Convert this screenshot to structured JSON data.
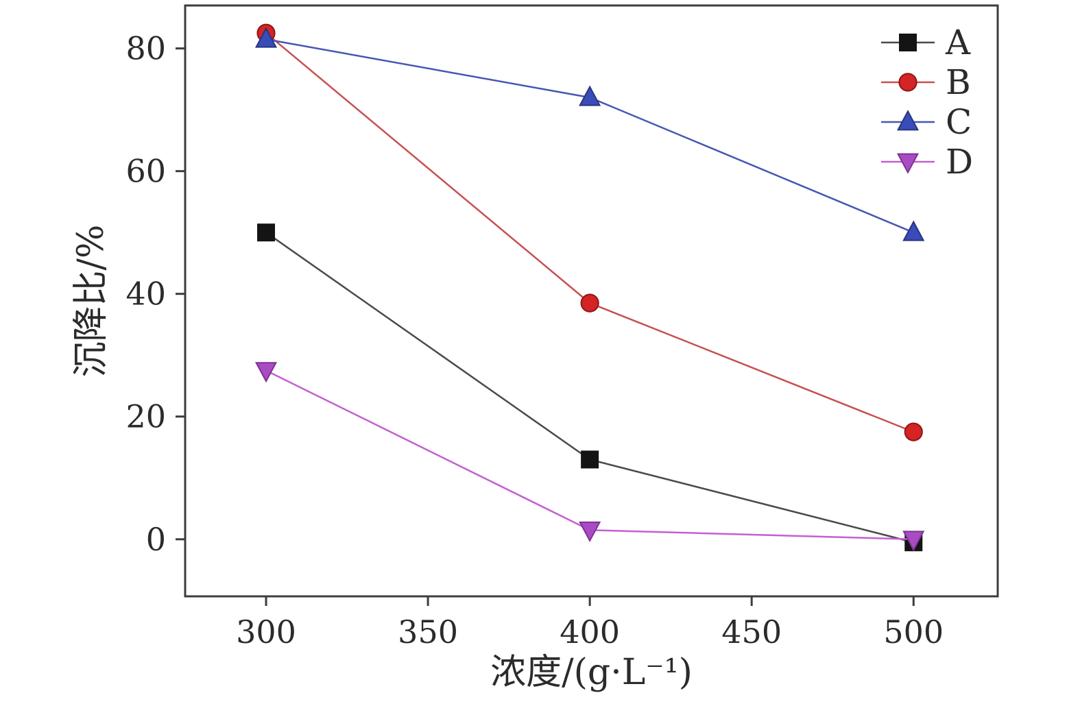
{
  "chart_data": {
    "type": "line",
    "title": "",
    "xlabel": "浓度/(g·L⁻¹)",
    "ylabel": "沉降比/%",
    "x": [
      300,
      400,
      500
    ],
    "x_ticks": [
      300,
      350,
      400,
      450,
      500
    ],
    "y_ticks": [
      0,
      20,
      40,
      60,
      80
    ],
    "xlim": [
      275,
      526
    ],
    "ylim": [
      -9.3,
      87
    ],
    "grid": false,
    "legend_position": "top-right",
    "series": [
      {
        "name": "A",
        "values": [
          50,
          13,
          -0.5
        ],
        "line_color": "#4a4a4a",
        "marker_color": "#141414",
        "marker_edge": "#141414",
        "marker": "square"
      },
      {
        "name": "B",
        "values": [
          82.5,
          38.5,
          17.5
        ],
        "line_color": "#c85050",
        "marker_color": "#d42424",
        "marker_edge": "#8e1616",
        "marker": "circle"
      },
      {
        "name": "C",
        "values": [
          81.5,
          72,
          50
        ],
        "line_color": "#4656b4",
        "marker_color": "#3a4cba",
        "marker_edge": "#28357e",
        "marker": "triangle-up"
      },
      {
        "name": "D",
        "values": [
          27.5,
          1.5,
          0
        ],
        "line_color": "#c45fd2",
        "marker_color": "#a94cc4",
        "marker_edge": "#7c3392",
        "marker": "triangle-down"
      }
    ],
    "axis_color": "#3c3c3c",
    "tick_label_color": "#2b2b2b"
  }
}
